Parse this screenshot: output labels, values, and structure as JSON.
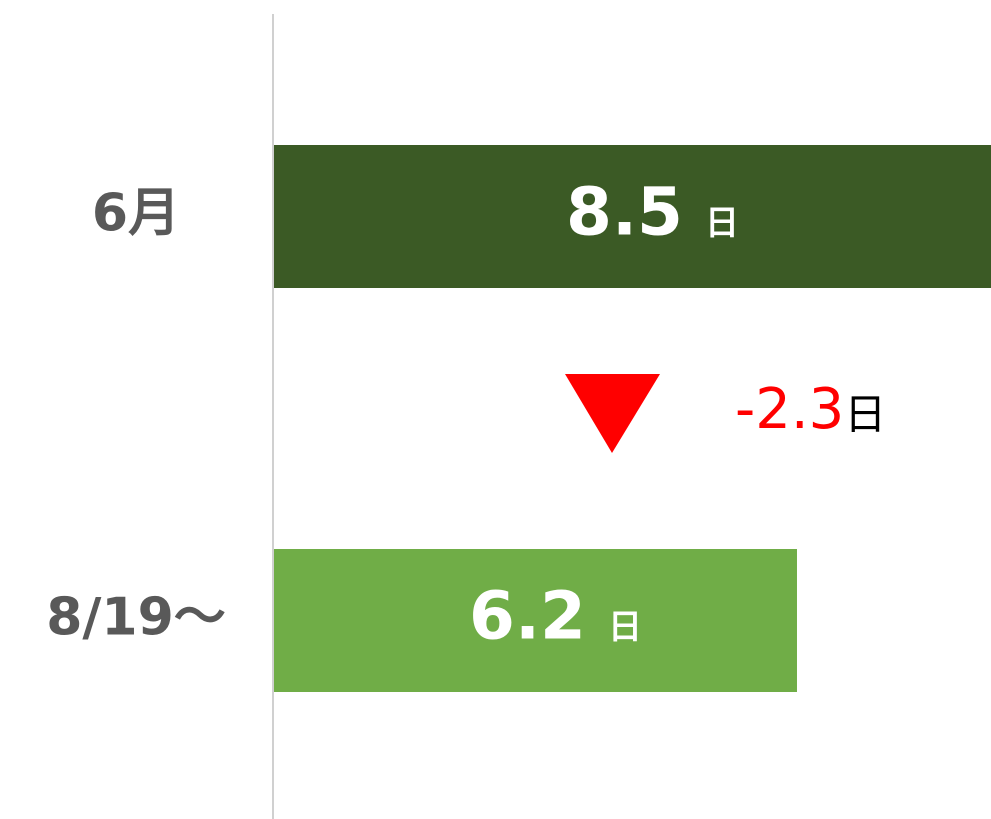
{
  "chart_data": {
    "type": "hbar",
    "categories": [
      "6月",
      "8/19～"
    ],
    "values": [
      8.5,
      6.2
    ],
    "colors": [
      "#3b5a25",
      "#70ad47"
    ],
    "unit": "日",
    "xlim": [
      0,
      8.5
    ],
    "annotation": {
      "value": -2.3,
      "color": "#ff0000"
    }
  }
}
